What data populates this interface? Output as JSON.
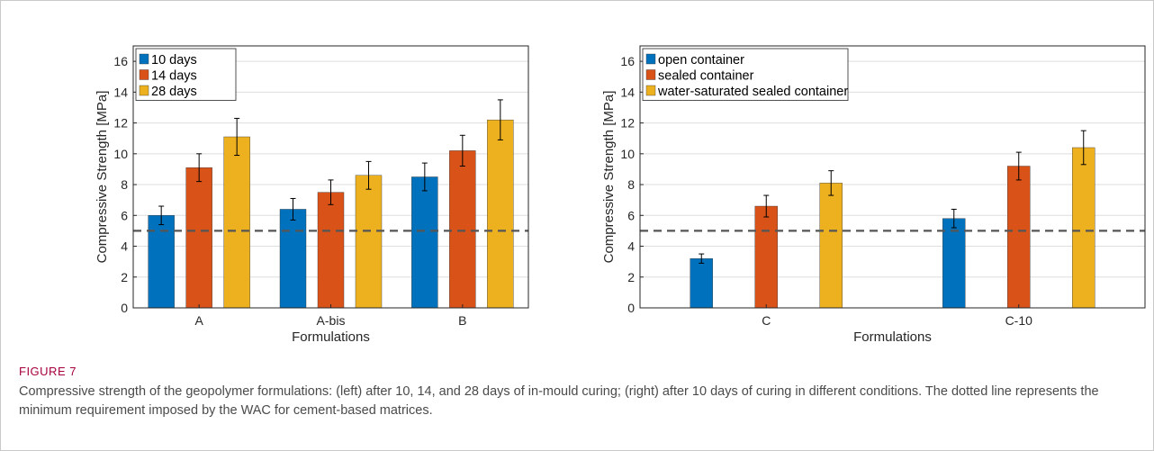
{
  "figure": {
    "label": "FIGURE 7",
    "caption": "Compressive strength of the geopolymer formulations: (left) after 10, 14, and 28 days of in-mould curing; (right) after 10 days of curing in different conditions. The dotted line represents the minimum requirement imposed by the WAC for cement-based matrices."
  },
  "chart_data": [
    {
      "type": "bar",
      "categories": [
        "A",
        "A-bis",
        "B"
      ],
      "series": [
        {
          "name": "10 days",
          "color": "#0072BD",
          "values": [
            6.0,
            6.4,
            8.5
          ],
          "errors": [
            0.6,
            0.7,
            0.9
          ]
        },
        {
          "name": "14 days",
          "color": "#D95319",
          "values": [
            9.1,
            7.5,
            10.2
          ],
          "errors": [
            0.9,
            0.8,
            1.0
          ]
        },
        {
          "name": "28 days",
          "color": "#EDB120",
          "values": [
            11.1,
            8.6,
            12.2
          ],
          "errors": [
            1.2,
            0.9,
            1.3
          ]
        }
      ],
      "xlabel": "Formulations",
      "ylabel": "Compressive Strength [MPa]",
      "ylim": [
        0,
        17
      ],
      "yticks": [
        0,
        2,
        4,
        6,
        8,
        10,
        12,
        14,
        16
      ],
      "reference_line": 5,
      "grid": true,
      "legend_position": "top-left"
    },
    {
      "type": "bar",
      "categories": [
        "C",
        "C-10"
      ],
      "series": [
        {
          "name": "open container",
          "color": "#0072BD",
          "values": [
            3.2,
            5.8
          ],
          "errors": [
            0.3,
            0.6
          ]
        },
        {
          "name": "sealed container",
          "color": "#D95319",
          "values": [
            6.6,
            9.2
          ],
          "errors": [
            0.7,
            0.9
          ]
        },
        {
          "name": "water-saturated sealed container",
          "color": "#EDB120",
          "values": [
            8.1,
            10.4
          ],
          "errors": [
            0.8,
            1.1
          ]
        }
      ],
      "xlabel": "Formulations",
      "ylabel": "Compressive Strength [MPa]",
      "ylim": [
        0,
        17
      ],
      "yticks": [
        0,
        2,
        4,
        6,
        8,
        10,
        12,
        14,
        16
      ],
      "reference_line": 5,
      "grid": true,
      "legend_position": "top-left"
    }
  ]
}
